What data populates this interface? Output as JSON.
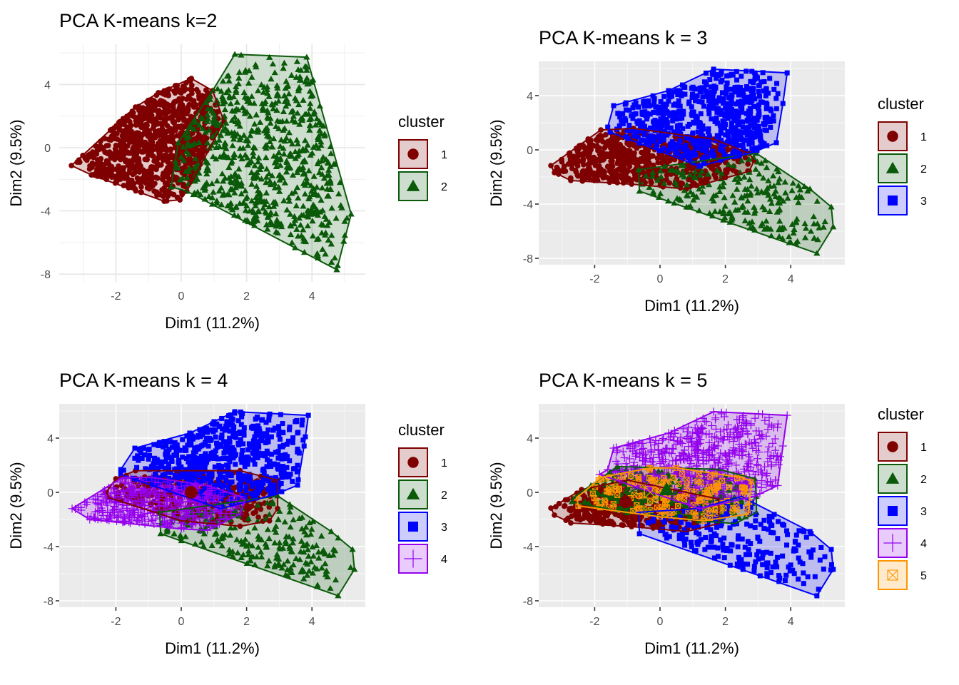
{
  "figure": {
    "layout": "2x2 grid of PCA cluster plots",
    "legend_title": "cluster"
  },
  "colors": {
    "1": "#7f0000",
    "2": "#0a5a0a",
    "3": "#0000ff",
    "4": "#9400ee",
    "5": "#ff9500"
  },
  "chart_data": [
    {
      "type": "scatter",
      "id": "k2",
      "title": "PCA K-means k=2",
      "theme": "minimal",
      "xlabel": "Dim1 (11.2%)",
      "ylabel": "Dim2 (9.5%)",
      "xlim": [
        -3.6,
        5.8
      ],
      "ylim": [
        -8.5,
        6.5
      ],
      "xticks": [
        -2,
        0,
        2,
        4
      ],
      "yticks": [
        4,
        0,
        -4,
        -8
      ],
      "x_tick_labels": [
        "-2",
        "0",
        "2",
        "4"
      ],
      "y_tick_labels": [
        "4",
        "0",
        "-4",
        "-8"
      ],
      "legend": {
        "title": "cluster",
        "position": "right",
        "entries": [
          "1",
          "2"
        ]
      },
      "clusters": [
        {
          "name": "1",
          "shape": "circle",
          "n_points": 900,
          "hull": [
            [
              -3.36,
              -1.13
            ],
            [
              -2.75,
              -1.72
            ],
            [
              -0.52,
              -3.39
            ],
            [
              -0.04,
              -3.3
            ],
            [
              0.17,
              -2.75
            ],
            [
              1.31,
              1.67
            ],
            [
              0.96,
              3.61
            ],
            [
              0.31,
              4.38
            ],
            [
              -0.7,
              3.48
            ],
            [
              -1.4,
              2.57
            ]
          ],
          "centroid": null
        },
        {
          "name": "2",
          "shape": "triangle",
          "n_points": 700,
          "hull": [
            [
              1.64,
              5.91
            ],
            [
              3.84,
              5.73
            ],
            [
              5.2,
              -4.2
            ],
            [
              4.76,
              -7.72
            ],
            [
              0.17,
              -2.75
            ],
            [
              -0.31,
              -2.48
            ],
            [
              -0.09,
              0.32
            ],
            [
              0.96,
              3.61
            ]
          ],
          "centroid": null
        }
      ]
    },
    {
      "type": "scatter",
      "id": "k3",
      "title": "PCA K-means k = 3",
      "theme": "gray",
      "xlabel": "Dim1 (11.2%)",
      "ylabel": "Dim2 (9.5%)",
      "xlim": [
        -3.6,
        5.8
      ],
      "ylim": [
        -8.5,
        6.5
      ],
      "xticks": [
        -2,
        0,
        2,
        4
      ],
      "yticks": [
        4,
        0,
        -4,
        -8
      ],
      "x_tick_labels": [
        "-2",
        "0",
        "2",
        "4"
      ],
      "y_tick_labels": [
        "4",
        "0",
        "-4",
        "-8"
      ],
      "legend": {
        "title": "cluster",
        "position": "right",
        "entries": [
          "1",
          "2",
          "3"
        ]
      },
      "clusters": [
        {
          "name": "1",
          "shape": "circle",
          "n_points": 700,
          "hull": [
            [
              -3.34,
              -1.16
            ],
            [
              -3.23,
              -1.68
            ],
            [
              -2.73,
              -2.26
            ],
            [
              -0.87,
              -2.53
            ],
            [
              0.81,
              -2.89
            ],
            [
              2.73,
              -1.58
            ],
            [
              2.88,
              -0.79
            ],
            [
              2.73,
              -0.26
            ],
            [
              1.64,
              0.79
            ],
            [
              -0.81,
              1.58
            ],
            [
              -1.81,
              1.47
            ]
          ],
          "centroid": null
        },
        {
          "name": "2",
          "shape": "triangle",
          "n_points": 220,
          "hull": [
            [
              -0.66,
              -1.47
            ],
            [
              -0.63,
              -3.05
            ],
            [
              4.8,
              -7.63
            ],
            [
              5.3,
              -5.68
            ],
            [
              5.24,
              -4.21
            ],
            [
              4.59,
              -2.89
            ],
            [
              2.95,
              -0.26
            ]
          ],
          "centroid": null
        },
        {
          "name": "3",
          "shape": "square",
          "n_points": 650,
          "hull": [
            [
              1.64,
              5.95
            ],
            [
              3.89,
              5.68
            ],
            [
              3.76,
              3.42
            ],
            [
              3.56,
              0.53
            ],
            [
              2.88,
              -0.16
            ],
            [
              1.2,
              -1.21
            ],
            [
              -1.53,
              1.32
            ],
            [
              -1.6,
              1.68
            ],
            [
              -1.42,
              3.26
            ],
            [
              0.26,
              4.37
            ]
          ],
          "centroid": null
        }
      ]
    },
    {
      "type": "scatter",
      "id": "k4",
      "title": "PCA K-means k = 4",
      "theme": "gray",
      "xlabel": "Dim1 (11.2%)",
      "ylabel": "Dim2 (9.5%)",
      "xlim": [
        -3.6,
        5.8
      ],
      "ylim": [
        -8.5,
        6.5
      ],
      "xticks": [
        -2,
        0,
        2,
        4
      ],
      "yticks": [
        4,
        0,
        -4,
        -8
      ],
      "x_tick_labels": [
        "-2",
        "0",
        "2",
        "4"
      ],
      "y_tick_labels": [
        "4",
        "0",
        "-4",
        "-8"
      ],
      "legend": {
        "title": "cluster",
        "position": "right",
        "entries": [
          "1",
          "2",
          "3",
          "4"
        ]
      },
      "clusters": [
        {
          "name": "1",
          "shape": "circle",
          "n_points": 350,
          "hull": [
            [
              -2.3,
              0.0
            ],
            [
              -2.2,
              -0.4
            ],
            [
              0.0,
              -2.1
            ],
            [
              1.8,
              -2.5
            ],
            [
              2.7,
              -2.1
            ],
            [
              2.95,
              -1.2
            ],
            [
              2.95,
              0.9
            ],
            [
              1.8,
              1.6
            ],
            [
              -1.4,
              1.6
            ],
            [
              -2.0,
              1.0
            ]
          ],
          "centroid": [
            0.3,
            0.0
          ]
        },
        {
          "name": "2",
          "shape": "triangle",
          "n_points": 220,
          "hull": [
            [
              -0.66,
              -1.47
            ],
            [
              -0.63,
              -3.05
            ],
            [
              4.8,
              -7.63
            ],
            [
              5.3,
              -5.68
            ],
            [
              5.24,
              -4.21
            ],
            [
              4.59,
              -2.89
            ],
            [
              2.95,
              -0.26
            ]
          ],
          "centroid": null
        },
        {
          "name": "3",
          "shape": "square",
          "n_points": 650,
          "hull": [
            [
              1.64,
              5.95
            ],
            [
              3.89,
              5.68
            ],
            [
              3.76,
              3.42
            ],
            [
              3.56,
              0.53
            ],
            [
              2.88,
              -0.16
            ],
            [
              1.2,
              -1.21
            ],
            [
              -1.85,
              1.32
            ],
            [
              -1.85,
              1.68
            ],
            [
              -1.42,
              3.26
            ],
            [
              0.26,
              4.37
            ]
          ],
          "centroid": null
        },
        {
          "name": "4",
          "shape": "plus",
          "n_points": 450,
          "hull": [
            [
              -3.34,
              -1.2
            ],
            [
              -2.8,
              -2.0
            ],
            [
              0.0,
              -2.7
            ],
            [
              0.8,
              -2.8
            ],
            [
              1.8,
              -1.6
            ],
            [
              1.95,
              -0.6
            ],
            [
              1.8,
              -0.3
            ],
            [
              0.8,
              0.5
            ],
            [
              -0.9,
              1.1
            ],
            [
              -1.8,
              1.1
            ]
          ],
          "centroid": null
        }
      ]
    },
    {
      "type": "scatter",
      "id": "k5",
      "title": "PCA K-means k = 5",
      "theme": "gray",
      "xlabel": "Dim1 (11.2%)",
      "ylabel": "Dim2 (9.5%)",
      "xlim": [
        -3.6,
        5.8
      ],
      "ylim": [
        -8.5,
        6.5
      ],
      "xticks": [
        -2,
        0,
        2,
        4
      ],
      "yticks": [
        4,
        0,
        -4,
        -8
      ],
      "x_tick_labels": [
        "-2",
        "0",
        "2",
        "4"
      ],
      "y_tick_labels": [
        "4",
        "0",
        "-4",
        "-8"
      ],
      "legend": {
        "title": "cluster",
        "position": "right",
        "entries": [
          "1",
          "2",
          "3",
          "4",
          "5"
        ]
      },
      "clusters": [
        {
          "name": "1",
          "shape": "circle",
          "n_points": 400,
          "hull": [
            [
              -3.34,
              -1.16
            ],
            [
              -3.23,
              -1.68
            ],
            [
              -2.73,
              -2.26
            ],
            [
              -0.87,
              -2.53
            ],
            [
              0.81,
              -2.89
            ],
            [
              1.8,
              -2.3
            ],
            [
              1.8,
              -0.5
            ],
            [
              -1.0,
              0.9
            ],
            [
              -2.4,
              0.2
            ]
          ],
          "centroid": [
            -1.05,
            -0.7
          ]
        },
        {
          "name": "2",
          "shape": "triangle",
          "n_points": 300,
          "hull": [
            [
              -2.7,
              -0.7
            ],
            [
              -2.6,
              -0.3
            ],
            [
              -1.3,
              1.9
            ],
            [
              1.8,
              1.7
            ],
            [
              2.9,
              1.0
            ],
            [
              2.95,
              -0.3
            ],
            [
              2.95,
              -1.5
            ],
            [
              2.3,
              -2.3
            ],
            [
              1.2,
              -2.1
            ],
            [
              -1.0,
              -1.5
            ]
          ],
          "centroid": [
            0.2,
            0.2
          ]
        },
        {
          "name": "3",
          "shape": "square",
          "n_points": 220,
          "hull": [
            [
              -0.66,
              -1.47
            ],
            [
              -0.63,
              -3.05
            ],
            [
              4.8,
              -7.63
            ],
            [
              5.3,
              -5.68
            ],
            [
              5.24,
              -4.21
            ],
            [
              4.59,
              -2.89
            ],
            [
              2.8,
              -0.7
            ],
            [
              2.5,
              -0.3
            ],
            [
              1.2,
              -1.2
            ]
          ],
          "centroid": null
        },
        {
          "name": "4",
          "shape": "plus",
          "n_points": 600,
          "hull": [
            [
              1.64,
              5.95
            ],
            [
              3.89,
              5.68
            ],
            [
              3.76,
              3.42
            ],
            [
              3.6,
              0.5
            ],
            [
              2.9,
              -0.3
            ],
            [
              1.2,
              -1.21
            ],
            [
              -1.85,
              1.32
            ],
            [
              -1.6,
              1.68
            ],
            [
              -1.42,
              3.26
            ],
            [
              0.26,
              4.37
            ]
          ],
          "centroid": null
        },
        {
          "name": "5",
          "shape": "square-cross",
          "n_points": 160,
          "hull": [
            [
              -2.55,
              -0.4
            ],
            [
              -2.5,
              -1.0
            ],
            [
              0.0,
              -1.8
            ],
            [
              1.35,
              -2.1
            ],
            [
              2.7,
              -1.6
            ],
            [
              2.8,
              0.8
            ],
            [
              2.5,
              1.1
            ],
            [
              0.5,
              1.8
            ],
            [
              -0.3,
              1.8
            ],
            [
              -1.8,
              1.1
            ]
          ],
          "centroid": [
            -0.3,
            0.0
          ]
        }
      ]
    }
  ]
}
